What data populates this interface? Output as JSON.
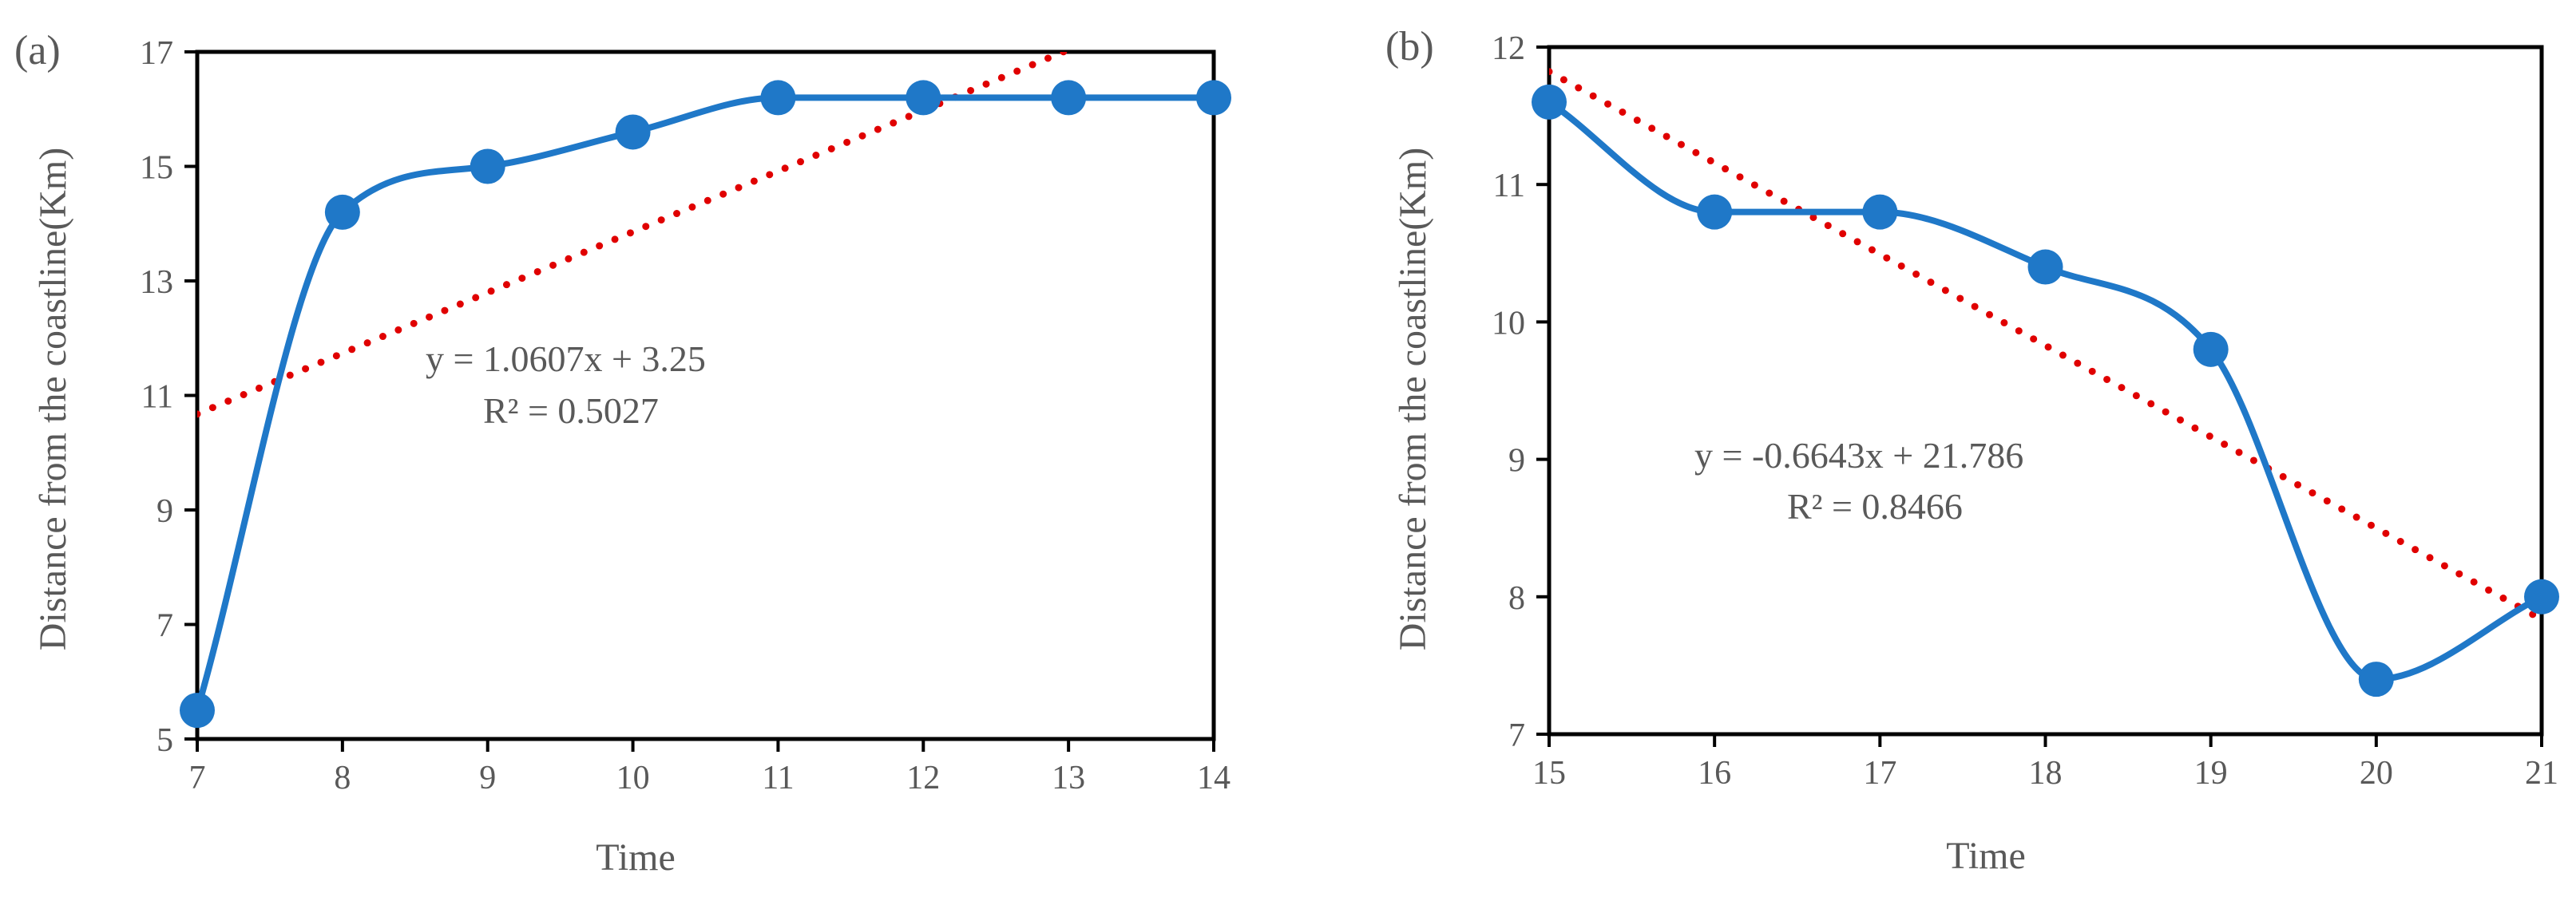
{
  "chart_data": [
    {
      "type": "line",
      "panel_label": "(a)",
      "xlabel": "Time",
      "ylabel": "Distance from the coastline(Km)",
      "xlim": [
        7,
        14
      ],
      "ylim": [
        5,
        17
      ],
      "xticks": [
        "7",
        "8",
        "9",
        "10",
        "11",
        "12",
        "13",
        "14"
      ],
      "yticks": [
        "5",
        "7",
        "9",
        "11",
        "13",
        "15",
        "17"
      ],
      "grid": false,
      "series": [
        {
          "x": [
            7,
            8,
            9,
            10,
            11,
            12,
            13,
            14
          ],
          "values": [
            5.5,
            14.2,
            15.0,
            15.6,
            16.2,
            16.2,
            16.2,
            16.2
          ],
          "color": "#1f78c8",
          "smooth": true,
          "marker": "circle"
        }
      ],
      "trendline": {
        "type": "linear",
        "slope": 1.0607,
        "intercept": 3.25,
        "color": "#e00000",
        "style": "dotted",
        "equation": "y = 1.0607x + 3.25",
        "r_squared": "R² = 0.5027"
      }
    },
    {
      "type": "line",
      "panel_label": "(b)",
      "xlabel": "Time",
      "ylabel": "Distance from the coastline(Km)",
      "xlim": [
        15,
        21
      ],
      "ylim": [
        7,
        12
      ],
      "xticks": [
        "15",
        "16",
        "17",
        "18",
        "19",
        "20",
        "21"
      ],
      "yticks": [
        "7",
        "8",
        "9",
        "10",
        "11",
        "12"
      ],
      "grid": false,
      "series": [
        {
          "x": [
            15,
            16,
            17,
            18,
            19,
            20,
            21
          ],
          "values": [
            11.6,
            10.8,
            10.8,
            10.4,
            9.8,
            7.4,
            8.0
          ],
          "color": "#1f78c8",
          "smooth": true,
          "marker": "circle"
        }
      ],
      "trendline": {
        "type": "linear",
        "slope": -0.6643,
        "intercept": 21.786,
        "color": "#e00000",
        "style": "dotted",
        "equation": "y = -0.6643x + 21.786",
        "r_squared": "R² = 0.8466"
      }
    }
  ]
}
